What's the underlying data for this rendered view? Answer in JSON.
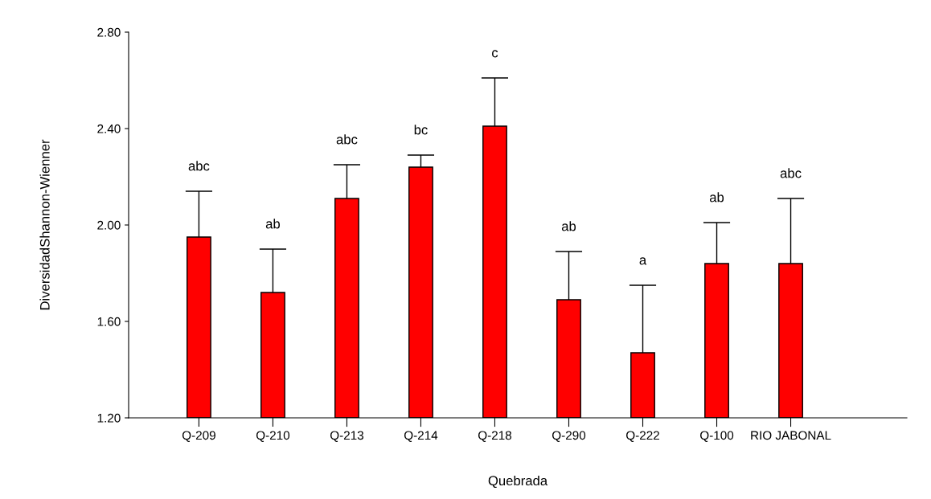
{
  "chart_data": {
    "type": "bar",
    "xlabel": "Quebrada",
    "ylabel": "DiversidadShannon-Wienner",
    "categories": [
      "Q-209",
      "Q-210",
      "Q-213",
      "Q-214",
      "Q-218",
      "Q-290",
      "Q-222",
      "Q-100",
      "RIO JABONAL"
    ],
    "values": [
      1.95,
      1.72,
      2.11,
      2.24,
      2.41,
      1.69,
      1.47,
      1.84,
      1.84
    ],
    "errors": [
      [
        1.95,
        2.14
      ],
      [
        1.72,
        1.9
      ],
      [
        2.11,
        2.25
      ],
      [
        2.24,
        2.29
      ],
      [
        2.41,
        2.61
      ],
      [
        1.69,
        1.89
      ],
      [
        1.47,
        1.75
      ],
      [
        1.84,
        2.01
      ],
      [
        1.84,
        2.11
      ]
    ],
    "color": "#ff0000",
    "ylim": [
      1.2,
      2.8
    ],
    "yticks": [
      {
        "value": 1.2,
        "label": "1.20"
      },
      {
        "value": 1.6,
        "label": "1.60"
      },
      {
        "value": 2.0,
        "label": "2.00"
      },
      {
        "value": 2.4,
        "label": "2.40"
      },
      {
        "value": 2.8,
        "label": "2.80"
      }
    ],
    "grid": false,
    "legend": false,
    "annotations": [
      {
        "text": "abc",
        "x": "Q-209",
        "y": 2.14
      },
      {
        "text": "ab",
        "x": "Q-210",
        "y": 1.9
      },
      {
        "text": "abc",
        "x": "Q-213",
        "y": 2.25
      },
      {
        "text": "bc",
        "x": "Q-214",
        "y": 2.29
      },
      {
        "text": "c",
        "x": "Q-218",
        "y": 2.61
      },
      {
        "text": "ab",
        "x": "Q-290",
        "y": 1.89
      },
      {
        "text": "a",
        "x": "Q-222",
        "y": 1.75
      },
      {
        "text": "ab",
        "x": "Q-100",
        "y": 2.01
      },
      {
        "text": "abc",
        "x": "RIO JABONAL",
        "y": 2.11
      }
    ]
  }
}
